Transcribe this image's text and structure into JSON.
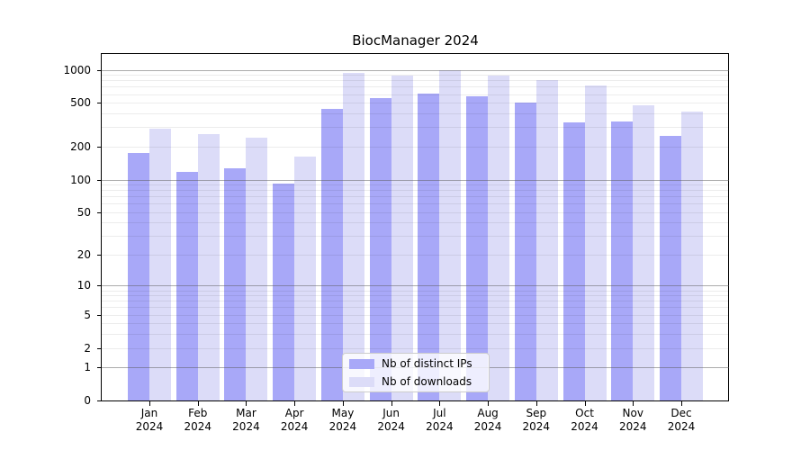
{
  "figure": {
    "background": "#ffffff"
  },
  "chart_data": {
    "type": "bar",
    "title": "BiocManager 2024",
    "categories": [
      "Jan 2024",
      "Feb 2024",
      "Mar 2024",
      "Apr 2024",
      "May 2024",
      "Jun 2024",
      "Jul 2024",
      "Aug 2024",
      "Sep 2024",
      "Oct 2024",
      "Nov 2024",
      "Dec 2024"
    ],
    "series": [
      {
        "name": "Nb of distinct IPs",
        "color": "#a8a8f8",
        "values": [
          175,
          118,
          126,
          92,
          440,
          550,
          605,
          577,
          505,
          330,
          338,
          250
        ]
      },
      {
        "name": "Nb of downloads",
        "color": "#dcdcf8",
        "values": [
          290,
          258,
          240,
          162,
          935,
          885,
          990,
          885,
          805,
          718,
          478,
          420
        ]
      }
    ],
    "xlabel": "",
    "ylabel": "",
    "yscale": "log10(1+y)",
    "y_ticks": [
      0,
      1,
      2,
      5,
      10,
      20,
      50,
      100,
      200,
      500,
      1000
    ],
    "ylim": [
      0,
      1390
    ],
    "grid": {
      "horizontal_major_at": [
        1,
        10,
        100,
        1000
      ],
      "horizontal_minor": "2-9 per decade",
      "major_color": "#b0b0b0",
      "minor_color": "#e9e9e9",
      "drawn_above_bars": true
    },
    "legend": {
      "position": "lower-center-inside"
    }
  }
}
